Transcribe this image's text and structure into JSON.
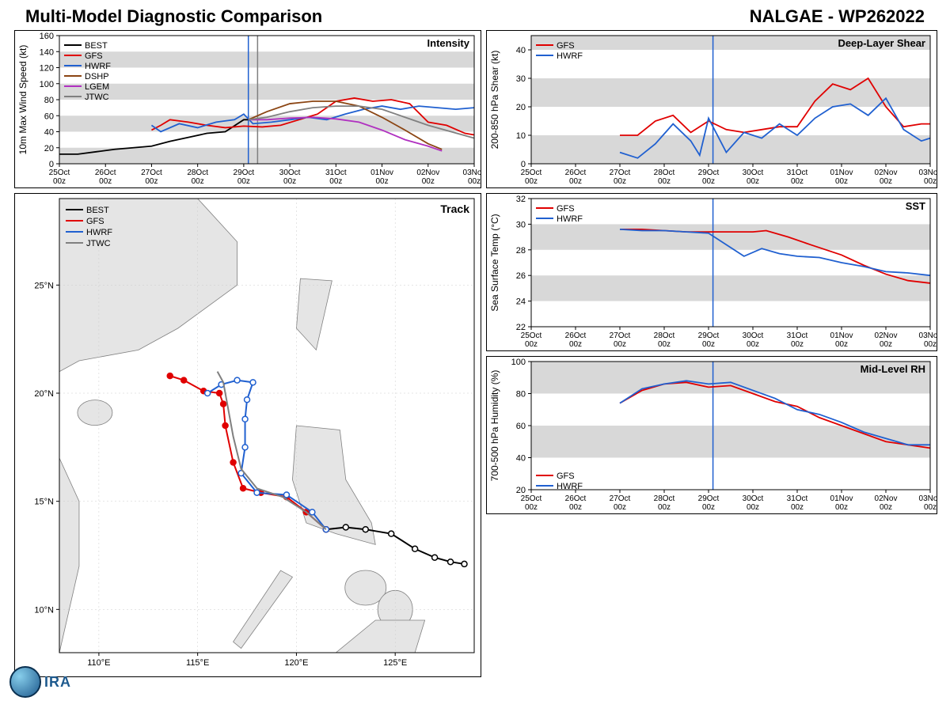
{
  "header": {
    "title_left": "Multi-Model Diagnostic Comparison",
    "title_right": "NALGAE - WP262022"
  },
  "logo": {
    "text": "IRA"
  },
  "colors": {
    "best": "#000000",
    "gfs": "#e00000",
    "hwrf": "#2060d0",
    "dshp": "#8b4513",
    "lgem": "#b030c0",
    "jtwc": "#808080",
    "band": "#d8d8d8",
    "grid": "#e8e8e8",
    "vline": "#2060d0",
    "vline2": "#808080",
    "land": "#e5e5e5",
    "water": "#ffffff",
    "border": "#808080"
  },
  "x_axis": {
    "ticks": [
      "25Oct\n00z",
      "26Oct\n00z",
      "27Oct\n00z",
      "28Oct\n00z",
      "29Oct\n00z",
      "30Oct\n00z",
      "31Oct\n00z",
      "01Nov\n00z",
      "02Nov\n00z",
      "03Nov\n00z"
    ],
    "nticks": 10,
    "vline_at": 4.1,
    "vline2_at": 4.3
  },
  "intensity": {
    "title": "Intensity",
    "ylabel": "10m Max Wind Speed (kt)",
    "ylim": [
      0,
      160
    ],
    "ytick_step": 20,
    "bands": [
      [
        0,
        20
      ],
      [
        40,
        60
      ],
      [
        80,
        100
      ],
      [
        120,
        140
      ]
    ],
    "series": {
      "BEST": {
        "color": "#000000",
        "data": [
          [
            0,
            12
          ],
          [
            0.4,
            12
          ],
          [
            0.8,
            15
          ],
          [
            1.2,
            18
          ],
          [
            1.6,
            20
          ],
          [
            2,
            22
          ],
          [
            2.4,
            28
          ],
          [
            2.8,
            33
          ],
          [
            3.2,
            38
          ],
          [
            3.6,
            40
          ],
          [
            4,
            55
          ],
          [
            4.1,
            55
          ]
        ]
      },
      "GFS": {
        "color": "#e00000",
        "data": [
          [
            2,
            42
          ],
          [
            2.2,
            48
          ],
          [
            2.4,
            55
          ],
          [
            2.8,
            52
          ],
          [
            3.2,
            48
          ],
          [
            3.6,
            45
          ],
          [
            4,
            47
          ],
          [
            4.4,
            46
          ],
          [
            4.8,
            48
          ],
          [
            5.2,
            55
          ],
          [
            5.6,
            62
          ],
          [
            6,
            78
          ],
          [
            6.4,
            82
          ],
          [
            6.8,
            78
          ],
          [
            7.2,
            80
          ],
          [
            7.6,
            75
          ],
          [
            8,
            52
          ],
          [
            8.4,
            48
          ],
          [
            8.8,
            38
          ],
          [
            9,
            36
          ]
        ]
      },
      "HWRF": {
        "color": "#2060d0",
        "data": [
          [
            2,
            48
          ],
          [
            2.2,
            40
          ],
          [
            2.6,
            50
          ],
          [
            3,
            45
          ],
          [
            3.4,
            52
          ],
          [
            3.8,
            55
          ],
          [
            4,
            62
          ],
          [
            4.2,
            50
          ],
          [
            4.6,
            52
          ],
          [
            5,
            55
          ],
          [
            5.4,
            58
          ],
          [
            5.8,
            55
          ],
          [
            6.2,
            62
          ],
          [
            6.6,
            68
          ],
          [
            7,
            72
          ],
          [
            7.4,
            68
          ],
          [
            7.8,
            72
          ],
          [
            8.2,
            70
          ],
          [
            8.6,
            68
          ],
          [
            9,
            70
          ]
        ]
      },
      "DSHP": {
        "color": "#8b4513",
        "data": [
          [
            4.1,
            55
          ],
          [
            4.5,
            65
          ],
          [
            5,
            75
          ],
          [
            5.5,
            78
          ],
          [
            6,
            78
          ],
          [
            6.5,
            72
          ],
          [
            7,
            58
          ],
          [
            7.5,
            42
          ],
          [
            8,
            25
          ],
          [
            8.3,
            18
          ]
        ]
      },
      "LGEM": {
        "color": "#b030c0",
        "data": [
          [
            4.1,
            55
          ],
          [
            4.5,
            55
          ],
          [
            5,
            57
          ],
          [
            5.5,
            58
          ],
          [
            6,
            56
          ],
          [
            6.5,
            52
          ],
          [
            7,
            42
          ],
          [
            7.5,
            30
          ],
          [
            8,
            22
          ],
          [
            8.3,
            16
          ]
        ]
      },
      "JTWC": {
        "color": "#808080",
        "data": [
          [
            4.1,
            55
          ],
          [
            4.5,
            58
          ],
          [
            5,
            65
          ],
          [
            5.5,
            70
          ],
          [
            6,
            72
          ],
          [
            6.5,
            72
          ],
          [
            7,
            68
          ],
          [
            7.5,
            58
          ],
          [
            8,
            48
          ],
          [
            8.5,
            40
          ],
          [
            9,
            32
          ]
        ]
      }
    },
    "legend": [
      "BEST",
      "GFS",
      "HWRF",
      "DSHP",
      "LGEM",
      "JTWC"
    ]
  },
  "shear": {
    "title": "Deep-Layer Shear",
    "ylabel": "200-850 hPa Shear (kt)",
    "ylim": [
      0,
      45
    ],
    "ytick_step": 10,
    "ytick_start": 0,
    "bands": [
      [
        0,
        10
      ],
      [
        20,
        30
      ],
      [
        40,
        45
      ]
    ],
    "series": {
      "GFS": {
        "color": "#e00000",
        "data": [
          [
            2,
            10
          ],
          [
            2.4,
            10
          ],
          [
            2.8,
            15
          ],
          [
            3.2,
            17
          ],
          [
            3.6,
            11
          ],
          [
            4,
            15
          ],
          [
            4.4,
            12
          ],
          [
            4.8,
            11
          ],
          [
            5.2,
            12
          ],
          [
            5.6,
            13
          ],
          [
            6,
            13
          ],
          [
            6.4,
            22
          ],
          [
            6.8,
            28
          ],
          [
            7.2,
            26
          ],
          [
            7.6,
            30
          ],
          [
            8,
            20
          ],
          [
            8.4,
            13
          ],
          [
            8.8,
            14
          ],
          [
            9,
            14
          ]
        ]
      },
      "HWRF": {
        "color": "#2060d0",
        "data": [
          [
            2,
            4
          ],
          [
            2.4,
            2
          ],
          [
            2.8,
            7
          ],
          [
            3.2,
            14
          ],
          [
            3.6,
            8
          ],
          [
            3.8,
            3
          ],
          [
            4,
            16
          ],
          [
            4.4,
            4
          ],
          [
            4.8,
            11
          ],
          [
            5.2,
            9
          ],
          [
            5.6,
            14
          ],
          [
            6,
            10
          ],
          [
            6.4,
            16
          ],
          [
            6.8,
            20
          ],
          [
            7.2,
            21
          ],
          [
            7.6,
            17
          ],
          [
            8,
            23
          ],
          [
            8.4,
            12
          ],
          [
            8.8,
            8
          ],
          [
            9,
            9
          ]
        ]
      }
    },
    "legend": [
      "GFS",
      "HWRF"
    ]
  },
  "sst": {
    "title": "SST",
    "ylabel": "Sea Surface Temp (°C)",
    "ylim": [
      22,
      32
    ],
    "ytick_step": 2,
    "bands": [
      [
        24,
        26
      ],
      [
        28,
        30
      ]
    ],
    "series": {
      "GFS": {
        "color": "#e00000",
        "data": [
          [
            2,
            29.6
          ],
          [
            2.5,
            29.6
          ],
          [
            3,
            29.5
          ],
          [
            3.5,
            29.4
          ],
          [
            4,
            29.4
          ],
          [
            5,
            29.4
          ],
          [
            5.3,
            29.5
          ],
          [
            5.8,
            29.0
          ],
          [
            6.3,
            28.4
          ],
          [
            7,
            27.6
          ],
          [
            7.5,
            26.8
          ],
          [
            8,
            26.1
          ],
          [
            8.5,
            25.6
          ],
          [
            9,
            25.4
          ]
        ]
      },
      "HWRF": {
        "color": "#2060d0",
        "data": [
          [
            2,
            29.6
          ],
          [
            2.5,
            29.5
          ],
          [
            3,
            29.5
          ],
          [
            3.5,
            29.4
          ],
          [
            4,
            29.3
          ],
          [
            4.8,
            27.5
          ],
          [
            5.2,
            28.1
          ],
          [
            5.6,
            27.7
          ],
          [
            6,
            27.5
          ],
          [
            6.5,
            27.4
          ],
          [
            7,
            27.0
          ],
          [
            7.5,
            26.7
          ],
          [
            8,
            26.3
          ],
          [
            8.5,
            26.2
          ],
          [
            9,
            26.0
          ]
        ]
      }
    },
    "legend": [
      "GFS",
      "HWRF"
    ]
  },
  "rh": {
    "title": "Mid-Level RH",
    "ylabel": "700-500 hPa Humidity (%)",
    "ylim": [
      20,
      100
    ],
    "ytick_step": 20,
    "bands": [
      [
        40,
        60
      ],
      [
        80,
        100
      ]
    ],
    "series": {
      "GFS": {
        "color": "#e00000",
        "data": [
          [
            2,
            74
          ],
          [
            2.5,
            82
          ],
          [
            3,
            86
          ],
          [
            3.5,
            87
          ],
          [
            4,
            84
          ],
          [
            4.5,
            85
          ],
          [
            5,
            80
          ],
          [
            5.5,
            75
          ],
          [
            6,
            72
          ],
          [
            6.5,
            65
          ],
          [
            7,
            60
          ],
          [
            7.5,
            55
          ],
          [
            8,
            50
          ],
          [
            8.5,
            48
          ],
          [
            9,
            46
          ]
        ]
      },
      "HWRF": {
        "color": "#2060d0",
        "data": [
          [
            2,
            74
          ],
          [
            2.5,
            83
          ],
          [
            3,
            86
          ],
          [
            3.5,
            88
          ],
          [
            4,
            86
          ],
          [
            4.5,
            87
          ],
          [
            5,
            82
          ],
          [
            5.5,
            77
          ],
          [
            6,
            70
          ],
          [
            6.5,
            67
          ],
          [
            7,
            62
          ],
          [
            7.5,
            56
          ],
          [
            8,
            52
          ],
          [
            8.5,
            48
          ],
          [
            9,
            48
          ]
        ]
      }
    },
    "legend": [
      "GFS",
      "HWRF"
    ]
  },
  "track": {
    "title": "Track",
    "xlim": [
      108,
      129
    ],
    "ylim": [
      8,
      29
    ],
    "xtick_step": 5,
    "ytick_step": 5,
    "xtick_labels": [
      "110°E",
      "115°E",
      "120°E",
      "125°E"
    ],
    "ytick_labels": [
      "10°N",
      "15°N",
      "20°N",
      "25°N"
    ],
    "legend": [
      "BEST",
      "GFS",
      "HWRF",
      "JTWC"
    ],
    "series": {
      "BEST": {
        "color": "#000000",
        "marker": "open",
        "data": [
          [
            128.5,
            12.1
          ],
          [
            127.8,
            12.2
          ],
          [
            127.0,
            12.4
          ],
          [
            126.0,
            12.8
          ],
          [
            124.8,
            13.5
          ],
          [
            123.5,
            13.7
          ],
          [
            122.5,
            13.8
          ],
          [
            121.5,
            13.7
          ]
        ]
      },
      "GFS": {
        "color": "#e00000",
        "marker": "closed",
        "data": [
          [
            121.5,
            13.7
          ],
          [
            120.5,
            14.5
          ],
          [
            119.5,
            15.2
          ],
          [
            118.2,
            15.4
          ],
          [
            117.3,
            15.6
          ],
          [
            116.8,
            16.8
          ],
          [
            116.4,
            18.5
          ],
          [
            116.3,
            19.5
          ],
          [
            116.1,
            20.0
          ],
          [
            115.3,
            20.1
          ],
          [
            114.3,
            20.6
          ],
          [
            113.6,
            20.8
          ]
        ]
      },
      "HWRF": {
        "color": "#2060d0",
        "marker": "open",
        "data": [
          [
            121.5,
            13.7
          ],
          [
            120.8,
            14.5
          ],
          [
            119.5,
            15.3
          ],
          [
            118.0,
            15.4
          ],
          [
            117.2,
            16.3
          ],
          [
            117.4,
            17.5
          ],
          [
            117.4,
            18.8
          ],
          [
            117.5,
            19.7
          ],
          [
            117.8,
            20.5
          ],
          [
            117.0,
            20.6
          ],
          [
            116.2,
            20.4
          ],
          [
            115.5,
            20.0
          ]
        ]
      },
      "JTWC": {
        "color": "#808080",
        "marker": "none",
        "data": [
          [
            121.5,
            13.7
          ],
          [
            120.5,
            14.5
          ],
          [
            119.3,
            15.2
          ],
          [
            118.0,
            15.6
          ],
          [
            117.2,
            16.5
          ],
          [
            116.8,
            18.0
          ],
          [
            116.5,
            19.5
          ],
          [
            116.3,
            20.5
          ],
          [
            116.0,
            21.0
          ]
        ]
      }
    }
  }
}
